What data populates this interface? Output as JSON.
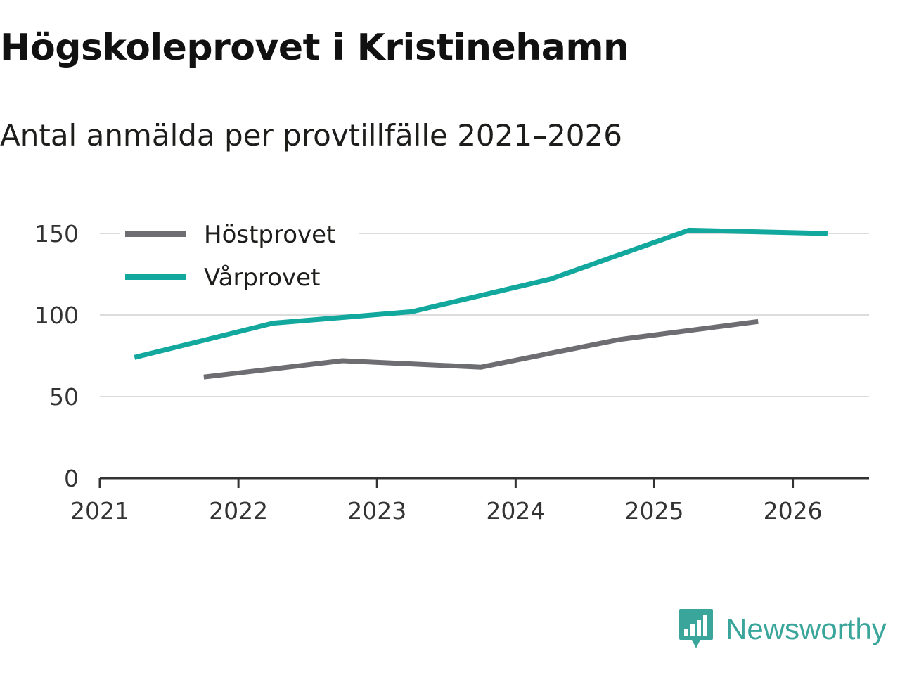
{
  "title": "Högskoleprovet i Kristinehamn",
  "subtitle": "Antal anmälda per provtillfälle 2021–2026",
  "brand": {
    "name": "Newsworthy",
    "color": "#3aa59a",
    "icon": "newsworthy-logo-icon"
  },
  "chart_data": {
    "type": "line",
    "title": "Högskoleprovet i Kristinehamn",
    "subtitle": "Antal anmälda per provtillfälle 2021–2026",
    "xlabel": "",
    "ylabel": "",
    "xlim": [
      2021,
      2026.55
    ],
    "ylim": [
      0,
      150
    ],
    "x_ticks": [
      2021,
      2022,
      2023,
      2024,
      2025,
      2026
    ],
    "y_ticks": [
      0,
      50,
      100,
      150
    ],
    "grid": true,
    "legend_position": "top-left",
    "series": [
      {
        "name": "Höstprovet",
        "color": "#6e6d72",
        "x": [
          2021.75,
          2022.75,
          2023.75,
          2024.75,
          2025.75
        ],
        "values": [
          62,
          72,
          68,
          85,
          96
        ]
      },
      {
        "name": "Vårprovet",
        "color": "#13a89e",
        "x": [
          2021.25,
          2022.25,
          2023.25,
          2024.25,
          2025.25,
          2026.25
        ],
        "values": [
          74,
          95,
          102,
          122,
          152,
          150
        ]
      }
    ]
  }
}
